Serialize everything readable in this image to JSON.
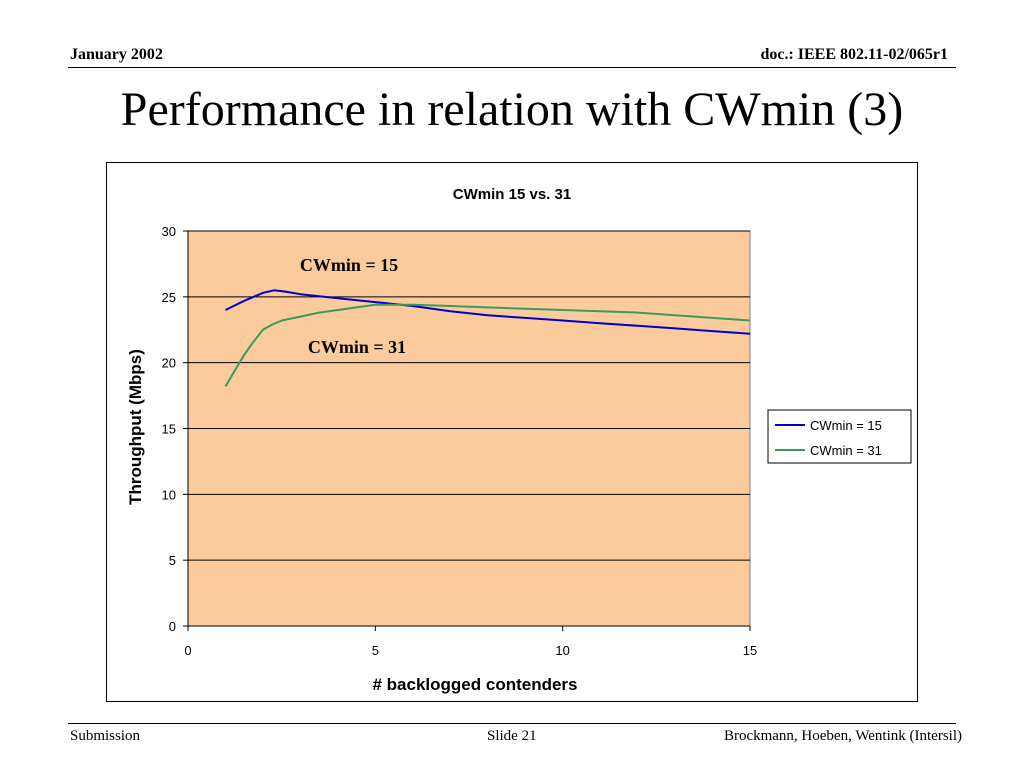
{
  "header": {
    "date": "January 2002",
    "doc": "doc.: IEEE 802.11-02/065r1"
  },
  "slide_title": "Performance in relation with CWmin (3)",
  "footer": {
    "left": "Submission",
    "center": "Slide 21",
    "right": "Brockmann, Hoeben, Wentink (Intersil)"
  },
  "colors": {
    "plot_area": "#fbcb9c",
    "gridline": "#000000",
    "series_cwmin15": "#0000cc",
    "series_cwmin31": "#3a9a5a"
  },
  "chart_data": {
    "type": "line",
    "title": "CWmin 15 vs. 31",
    "xlabel": "# backlogged contenders",
    "ylabel": "Throughput (Mbps)",
    "xlim": [
      0,
      15
    ],
    "ylim": [
      0,
      30
    ],
    "xticks": [
      0,
      5,
      10,
      15
    ],
    "yticks": [
      0,
      5,
      10,
      15,
      20,
      25,
      30
    ],
    "grid": "horizontal",
    "legend_position": "right",
    "series": [
      {
        "name": "CWmin = 15",
        "x": [
          1,
          1.5,
          2,
          2.3,
          2.6,
          3,
          4,
          5,
          6,
          7,
          8,
          9,
          10,
          11,
          12,
          13,
          14,
          15
        ],
        "values": [
          24.0,
          24.7,
          25.3,
          25.5,
          25.4,
          25.2,
          24.9,
          24.6,
          24.3,
          23.9,
          23.6,
          23.4,
          23.2,
          23.0,
          22.8,
          22.6,
          22.4,
          22.2
        ]
      },
      {
        "name": "CWmin = 31",
        "x": [
          1,
          1.25,
          1.5,
          1.75,
          2,
          2.25,
          2.5,
          3,
          3.5,
          4,
          4.5,
          5,
          5.5,
          6,
          7,
          8,
          9,
          10,
          11,
          12,
          13,
          14,
          15
        ],
        "values": [
          18.2,
          19.4,
          20.6,
          21.6,
          22.5,
          22.9,
          23.2,
          23.5,
          23.8,
          24.0,
          24.2,
          24.4,
          24.4,
          24.4,
          24.3,
          24.2,
          24.1,
          24.0,
          23.9,
          23.8,
          23.6,
          23.4,
          23.2
        ]
      }
    ],
    "annotations": [
      "CWmin = 15",
      "CWmin = 31"
    ]
  }
}
